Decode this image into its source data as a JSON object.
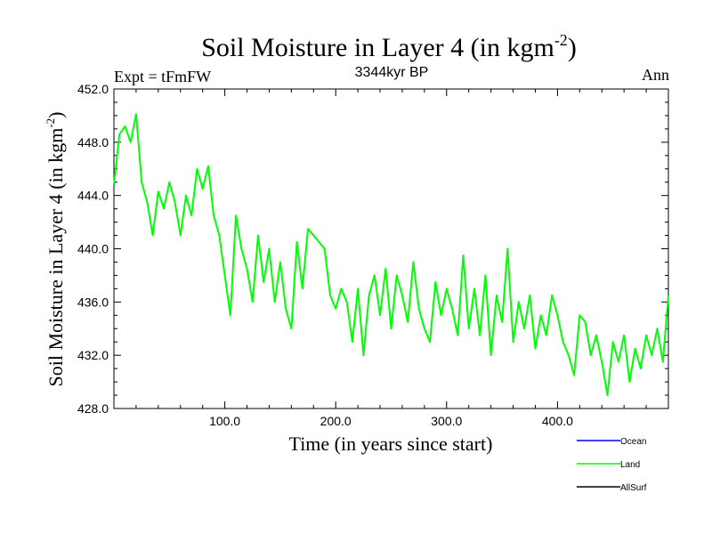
{
  "chart_data": {
    "type": "line",
    "title": "Soil Moisture in Layer 4 (in kgm",
    "title_sup": "-2",
    "title_close": ")",
    "subtitle": "3344kyr BP",
    "left_label": "Expt = tFmFW",
    "right_label": "Ann",
    "xlabel": "Time (in years since start)",
    "ylabel": "Soil Moisture in Layer 4 (in kgm",
    "ylabel_sup": "-2",
    "ylabel_close": ")",
    "xlim": [
      0,
      500
    ],
    "ylim": [
      428,
      452
    ],
    "x_ticks": [
      100,
      200,
      300,
      400
    ],
    "x_tick_labels": [
      "100.0",
      "200.0",
      "300.0",
      "400.0"
    ],
    "y_ticks": [
      428,
      432,
      436,
      440,
      444,
      448,
      452
    ],
    "y_tick_labels": [
      "428.0",
      "432.0",
      "436.0",
      "440.0",
      "444.0",
      "448.0",
      "452.0"
    ],
    "legend": [
      {
        "name": "Ocean",
        "color": "#0000ff"
      },
      {
        "name": "Land",
        "color": "#00ff00"
      },
      {
        "name": "AllSurf",
        "color": "#000000"
      }
    ],
    "series": [
      {
        "name": "Land",
        "color": "#00ff00",
        "x": [
          0,
          5,
          10,
          15,
          20,
          25,
          30,
          35,
          40,
          45,
          50,
          55,
          60,
          65,
          70,
          75,
          80,
          85,
          90,
          95,
          100,
          105,
          110,
          115,
          120,
          125,
          130,
          135,
          140,
          145,
          150,
          155,
          160,
          165,
          170,
          175,
          180,
          185,
          190,
          195,
          200,
          205,
          210,
          215,
          220,
          225,
          230,
          235,
          240,
          245,
          250,
          255,
          260,
          265,
          270,
          275,
          280,
          285,
          290,
          295,
          300,
          305,
          310,
          315,
          320,
          325,
          330,
          335,
          340,
          345,
          350,
          355,
          360,
          365,
          370,
          375,
          380,
          385,
          390,
          395,
          400,
          405,
          410,
          415,
          420,
          425,
          430,
          435,
          440,
          445,
          450,
          455,
          460,
          465,
          470,
          475,
          480,
          485,
          490,
          495,
          500
        ],
        "values": [
          444.8,
          448.6,
          449.2,
          448.0,
          450.1,
          445.0,
          443.5,
          441.0,
          444.3,
          443.0,
          445.0,
          443.5,
          441.0,
          444.0,
          442.5,
          446.0,
          444.5,
          446.2,
          442.5,
          441.0,
          438.0,
          435.0,
          442.5,
          440.0,
          438.5,
          436.0,
          441.0,
          437.5,
          440.0,
          436.0,
          439.0,
          435.5,
          434.0,
          440.5,
          437.0,
          441.5,
          441.0,
          440.5,
          440.0,
          436.5,
          435.5,
          437.0,
          436.0,
          433.0,
          437.0,
          432.0,
          436.5,
          438.0,
          435.0,
          438.5,
          434.0,
          438.0,
          436.5,
          434.5,
          439.0,
          435.5,
          434.0,
          433.0,
          437.5,
          435.0,
          437.0,
          435.5,
          433.5,
          439.5,
          434.0,
          437.0,
          433.5,
          438.0,
          432.0,
          436.5,
          434.5,
          440.0,
          433.0,
          436.0,
          434.0,
          436.5,
          432.5,
          435.0,
          433.5,
          436.5,
          435.0,
          433.0,
          432.0,
          430.5,
          435.0,
          434.5,
          432.0,
          433.5,
          431.5,
          429.0,
          433.0,
          431.5,
          433.5,
          430.0,
          432.5,
          431.0,
          433.5,
          432.0,
          434.0,
          431.5,
          436.5
        ]
      }
    ]
  }
}
